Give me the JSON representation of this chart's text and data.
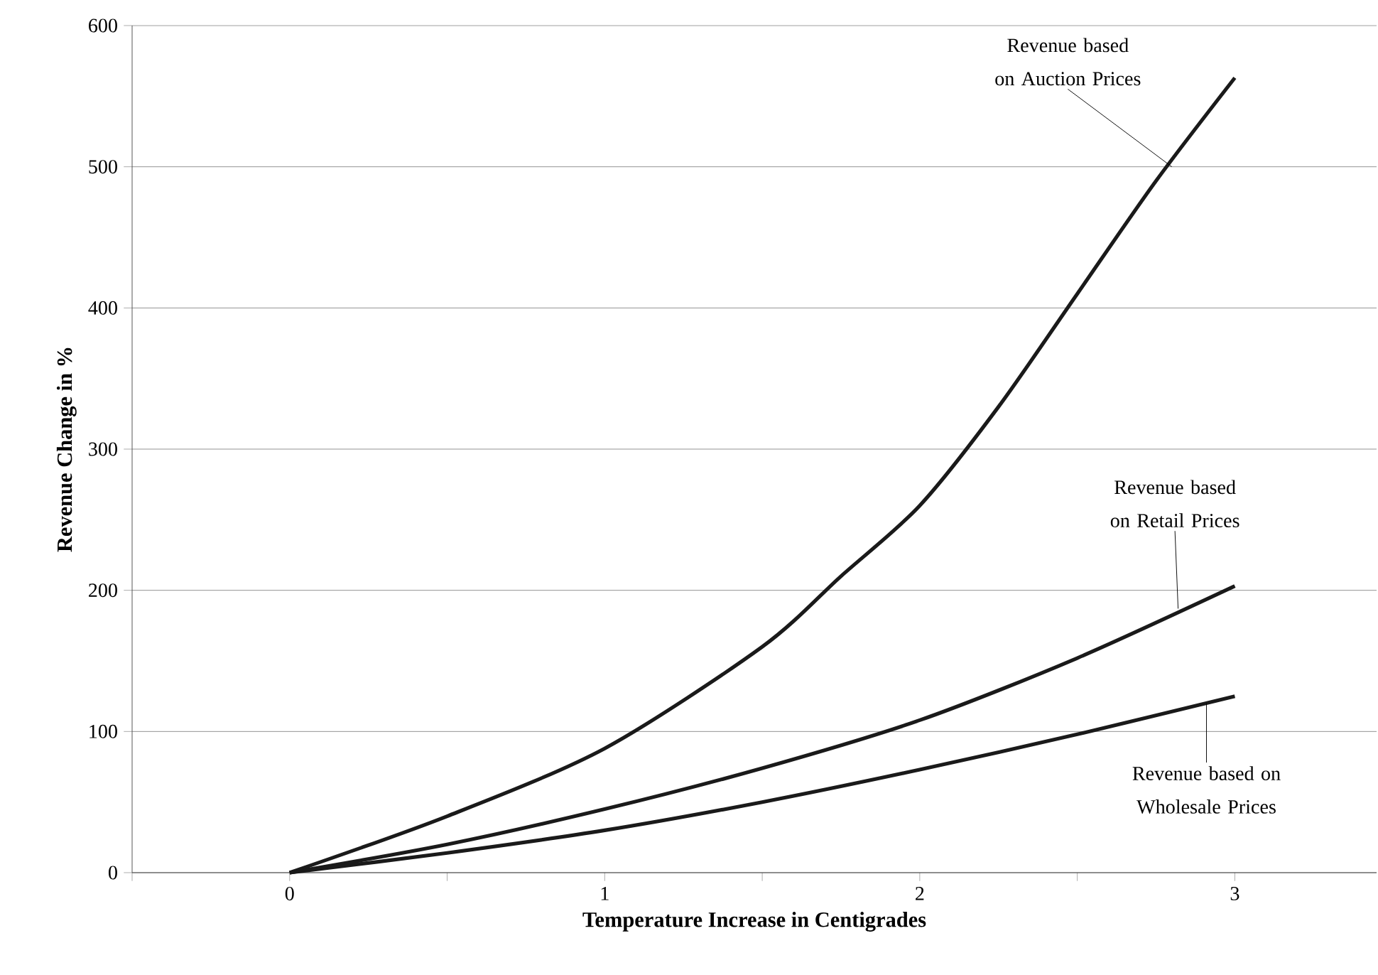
{
  "chart_data": {
    "type": "line",
    "xlabel": "Temperature Increase in Centigrades",
    "ylabel": "Revenue Change in %",
    "xlim": [
      -0.5,
      3.45
    ],
    "ylim": [
      0,
      600
    ],
    "xticks": [
      {
        "value": -0.5,
        "label": null
      },
      {
        "value": 0,
        "label": "0"
      },
      {
        "value": 0.5,
        "label": null
      },
      {
        "value": 1,
        "label": "1"
      },
      {
        "value": 1.5,
        "label": null
      },
      {
        "value": 2,
        "label": "2"
      },
      {
        "value": 2.5,
        "label": null
      },
      {
        "value": 3,
        "label": "3"
      }
    ],
    "yticks": [
      0,
      100,
      200,
      300,
      400,
      500,
      600
    ],
    "grid": "y",
    "marker": "none",
    "line_style": "solid",
    "series": [
      {
        "color": "#1a1a1a",
        "x": [
          0,
          0.5,
          1,
          1.5,
          1.75,
          2,
          2.25,
          2.5,
          2.75,
          3
        ],
        "values": [
          0,
          40,
          88,
          160,
          210,
          260,
          330,
          410,
          490,
          563
        ]
      },
      {
        "color": "#1a1a1a",
        "x": [
          0,
          0.5,
          1,
          1.5,
          2,
          2.5,
          3
        ],
        "values": [
          0,
          20,
          45,
          74,
          108,
          152,
          203
        ]
      },
      {
        "color": "#1a1a1a",
        "x": [
          0,
          0.5,
          1,
          1.5,
          2,
          2.5,
          3
        ],
        "values": [
          0,
          14,
          30,
          50,
          73,
          98,
          125
        ]
      }
    ],
    "annotations": [
      {
        "text": "Revenue based on Auction Prices",
        "x": 2.8,
        "y": 500
      },
      {
        "text": "Revenue based on Retail Prices",
        "x": 2.82,
        "y": 187
      },
      {
        "text": "Revenue based on Wholesale Prices",
        "x": 2.91,
        "y": 120
      }
    ]
  }
}
